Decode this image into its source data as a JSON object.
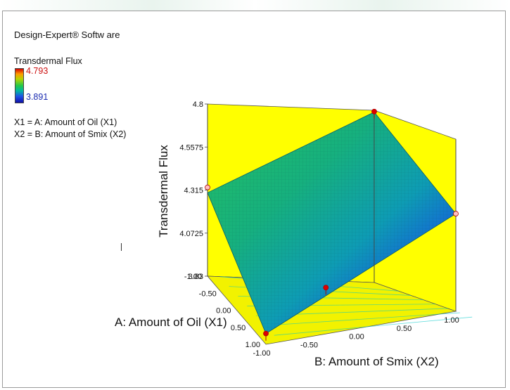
{
  "software": "Design-Expert® Softw are",
  "legend": {
    "title": "Transdermal Flux",
    "max": "4.793",
    "min": "3.891",
    "colors": [
      "#d40000",
      "#ff9900",
      "#b8d400",
      "#22c84a",
      "#00b8a0",
      "#1e50e6",
      "#1010a8"
    ]
  },
  "variables": {
    "x1": "X1 = A: Amount of Oil (X1)",
    "x2": "X2 = B: Amount of Smix (X2)"
  },
  "chart_data": {
    "type": "surface",
    "zlabel": "Transdermal Flux",
    "xlabel": "A: Amount of Oil (X1)",
    "ylabel": "B: Amount of Smix (X2)",
    "z_ticks": [
      "3.83",
      "4.0725",
      "4.315",
      "4.5575",
      "4.8"
    ],
    "a_ticks": [
      "-1.00",
      "-0.50",
      "0.00",
      "0.50",
      "1.00"
    ],
    "b_ticks": [
      "-1.00",
      "-0.50",
      "0.00",
      "0.50",
      "1.00"
    ],
    "zlim": [
      3.83,
      4.8
    ],
    "alim": [
      -1,
      1
    ],
    "blim": [
      -1,
      1
    ],
    "surface_corners": [
      {
        "a": -1,
        "b": -1,
        "z": 4.3
      },
      {
        "a": -1,
        "b": 1,
        "z": 4.79
      },
      {
        "a": 1,
        "b": 1,
        "z": 4.38
      },
      {
        "a": 1,
        "b": -1,
        "z": 3.89
      }
    ],
    "design_points": [
      {
        "a": -1,
        "b": 1,
        "z": 4.793,
        "above": true
      },
      {
        "a": 1,
        "b": -1,
        "z": 3.891,
        "above": true
      },
      {
        "a": 0,
        "b": 0,
        "z": 3.92,
        "above": true
      },
      {
        "a": -1,
        "b": -1,
        "z": 4.33,
        "above": false
      },
      {
        "a": 1,
        "b": 1,
        "z": 4.38,
        "above": false
      }
    ],
    "colors": {
      "wall": "#ffff00",
      "floor": "#f2f200",
      "high": "#d40000",
      "low": "#1010a8",
      "point_above": "#dd0000",
      "point_below": "#ffc0c0"
    }
  }
}
